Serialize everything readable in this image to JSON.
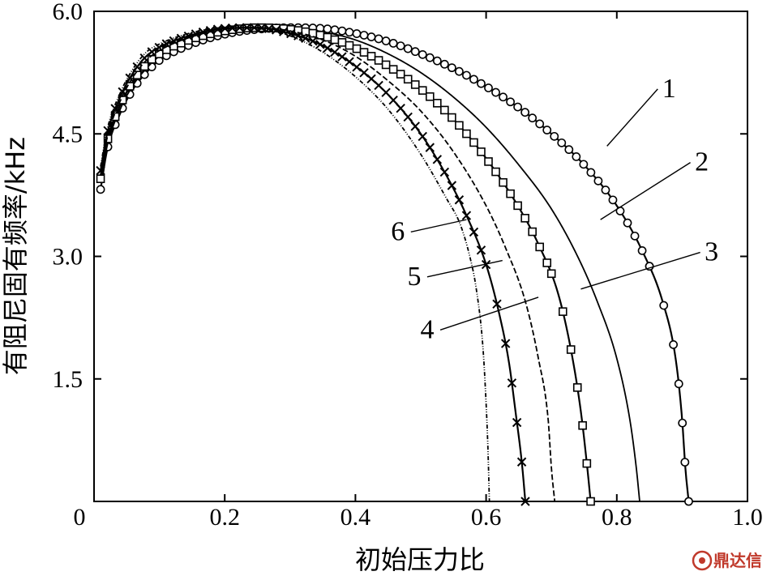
{
  "chart_data": {
    "type": "line",
    "xlabel": "初始压力比",
    "ylabel": "有阻尼固有频率/kHz",
    "xlim": [
      0,
      1.0
    ],
    "ylim": [
      0,
      6.0
    ],
    "x_ticks": [
      "0.2",
      "0.4",
      "0.6",
      "0.8",
      "1.0"
    ],
    "y_ticks": [
      "1.5",
      "3.0",
      "4.5",
      "6.0"
    ],
    "origin_label": "0",
    "grid": false,
    "series": [
      {
        "name": "1",
        "marker": "circle",
        "peak": 0.3,
        "end": 0.91,
        "points": [
          [
            0.01,
            3.82
          ],
          [
            0.02,
            4.3
          ],
          [
            0.04,
            4.75
          ],
          [
            0.06,
            5.05
          ],
          [
            0.08,
            5.25
          ],
          [
            0.1,
            5.4
          ],
          [
            0.15,
            5.6
          ],
          [
            0.2,
            5.72
          ],
          [
            0.25,
            5.78
          ],
          [
            0.3,
            5.8
          ],
          [
            0.35,
            5.79
          ],
          [
            0.4,
            5.73
          ],
          [
            0.45,
            5.63
          ],
          [
            0.5,
            5.48
          ],
          [
            0.55,
            5.3
          ],
          [
            0.6,
            5.08
          ],
          [
            0.65,
            4.82
          ],
          [
            0.7,
            4.5
          ],
          [
            0.75,
            4.12
          ],
          [
            0.8,
            3.62
          ],
          [
            0.84,
            3.05
          ],
          [
            0.87,
            2.45
          ],
          [
            0.89,
            1.75
          ],
          [
            0.9,
            1.0
          ],
          [
            0.905,
            0.4
          ],
          [
            0.91,
            0.0
          ]
        ]
      },
      {
        "name": "2",
        "marker": "none",
        "peak": 0.29,
        "end": 0.835,
        "points": [
          [
            0.01,
            3.9
          ],
          [
            0.02,
            4.35
          ],
          [
            0.04,
            4.8
          ],
          [
            0.06,
            5.1
          ],
          [
            0.08,
            5.3
          ],
          [
            0.1,
            5.45
          ],
          [
            0.15,
            5.64
          ],
          [
            0.2,
            5.74
          ],
          [
            0.25,
            5.79
          ],
          [
            0.3,
            5.8
          ],
          [
            0.35,
            5.75
          ],
          [
            0.4,
            5.65
          ],
          [
            0.45,
            5.48
          ],
          [
            0.5,
            5.25
          ],
          [
            0.55,
            4.95
          ],
          [
            0.6,
            4.58
          ],
          [
            0.65,
            4.12
          ],
          [
            0.7,
            3.58
          ],
          [
            0.74,
            3.0
          ],
          [
            0.77,
            2.45
          ],
          [
            0.8,
            1.75
          ],
          [
            0.82,
            1.0
          ],
          [
            0.83,
            0.4
          ],
          [
            0.835,
            0.0
          ]
        ]
      },
      {
        "name": "3",
        "marker": "square",
        "peak": 0.28,
        "end": 0.76,
        "points": [
          [
            0.01,
            3.95
          ],
          [
            0.02,
            4.4
          ],
          [
            0.04,
            4.85
          ],
          [
            0.06,
            5.15
          ],
          [
            0.08,
            5.35
          ],
          [
            0.1,
            5.48
          ],
          [
            0.15,
            5.66
          ],
          [
            0.2,
            5.76
          ],
          [
            0.25,
            5.8
          ],
          [
            0.3,
            5.78
          ],
          [
            0.35,
            5.7
          ],
          [
            0.4,
            5.55
          ],
          [
            0.45,
            5.33
          ],
          [
            0.5,
            5.05
          ],
          [
            0.55,
            4.68
          ],
          [
            0.6,
            4.2
          ],
          [
            0.65,
            3.6
          ],
          [
            0.68,
            3.15
          ],
          [
            0.71,
            2.55
          ],
          [
            0.73,
            1.85
          ],
          [
            0.745,
            1.1
          ],
          [
            0.755,
            0.4
          ],
          [
            0.76,
            0.0
          ]
        ]
      },
      {
        "name": "4",
        "marker": "none",
        "peak": 0.27,
        "end": 0.705,
        "points": [
          [
            0.01,
            4.0
          ],
          [
            0.02,
            4.45
          ],
          [
            0.04,
            4.9
          ],
          [
            0.06,
            5.2
          ],
          [
            0.08,
            5.4
          ],
          [
            0.1,
            5.52
          ],
          [
            0.15,
            5.69
          ],
          [
            0.2,
            5.78
          ],
          [
            0.25,
            5.8
          ],
          [
            0.3,
            5.76
          ],
          [
            0.35,
            5.65
          ],
          [
            0.4,
            5.45
          ],
          [
            0.45,
            5.15
          ],
          [
            0.5,
            4.78
          ],
          [
            0.55,
            4.28
          ],
          [
            0.6,
            3.62
          ],
          [
            0.63,
            3.1
          ],
          [
            0.66,
            2.45
          ],
          [
            0.68,
            1.75
          ],
          [
            0.695,
            1.0
          ],
          [
            0.7,
            0.4
          ],
          [
            0.705,
            0.0
          ]
        ]
      },
      {
        "name": "5",
        "marker": "cross",
        "peak": 0.26,
        "end": 0.66,
        "points": [
          [
            0.01,
            4.05
          ],
          [
            0.02,
            4.5
          ],
          [
            0.04,
            4.95
          ],
          [
            0.06,
            5.25
          ],
          [
            0.08,
            5.45
          ],
          [
            0.1,
            5.56
          ],
          [
            0.15,
            5.71
          ],
          [
            0.2,
            5.79
          ],
          [
            0.25,
            5.8
          ],
          [
            0.3,
            5.73
          ],
          [
            0.35,
            5.58
          ],
          [
            0.4,
            5.33
          ],
          [
            0.45,
            4.98
          ],
          [
            0.5,
            4.5
          ],
          [
            0.54,
            3.98
          ],
          [
            0.57,
            3.5
          ],
          [
            0.6,
            2.9
          ],
          [
            0.62,
            2.3
          ],
          [
            0.635,
            1.7
          ],
          [
            0.645,
            1.1
          ],
          [
            0.655,
            0.45
          ],
          [
            0.66,
            0.0
          ]
        ]
      },
      {
        "name": "6",
        "marker": "none",
        "peak": 0.25,
        "end": 0.605,
        "points": [
          [
            0.01,
            4.1
          ],
          [
            0.02,
            4.55
          ],
          [
            0.04,
            5.0
          ],
          [
            0.06,
            5.3
          ],
          [
            0.08,
            5.5
          ],
          [
            0.1,
            5.6
          ],
          [
            0.15,
            5.74
          ],
          [
            0.2,
            5.8
          ],
          [
            0.25,
            5.79
          ],
          [
            0.3,
            5.7
          ],
          [
            0.35,
            5.5
          ],
          [
            0.4,
            5.2
          ],
          [
            0.45,
            4.8
          ],
          [
            0.5,
            4.25
          ],
          [
            0.54,
            3.7
          ],
          [
            0.56,
            3.4
          ],
          [
            0.575,
            3.0
          ],
          [
            0.585,
            2.6
          ],
          [
            0.595,
            1.9
          ],
          [
            0.6,
            1.2
          ],
          [
            0.603,
            0.6
          ],
          [
            0.605,
            0.0
          ]
        ]
      }
    ],
    "annotations": [
      {
        "label": "1",
        "tx": 0.88,
        "ty": 4.95,
        "px": 0.785,
        "py": 4.35
      },
      {
        "label": "2",
        "tx": 0.93,
        "ty": 4.05,
        "px": 0.775,
        "py": 3.45
      },
      {
        "label": "3",
        "tx": 0.945,
        "ty": 2.95,
        "px": 0.745,
        "py": 2.6
      },
      {
        "label": "4",
        "tx": 0.51,
        "ty": 2.0,
        "px": 0.68,
        "py": 2.5
      },
      {
        "label": "5",
        "tx": 0.49,
        "ty": 2.65,
        "px": 0.625,
        "py": 2.95
      },
      {
        "label": "6",
        "tx": 0.465,
        "ty": 3.2,
        "px": 0.57,
        "py": 3.45
      }
    ]
  },
  "watermark": {
    "text": "鼎达信",
    "color": "#c0392b"
  }
}
